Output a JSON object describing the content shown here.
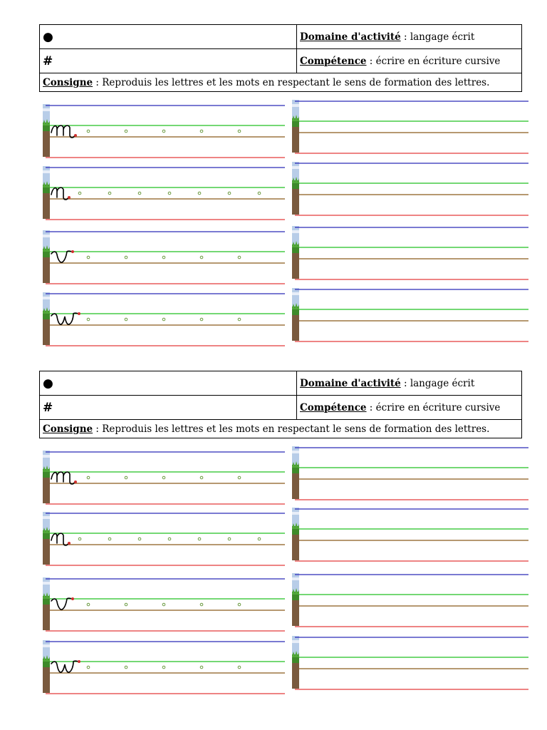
{
  "sheets": [
    {
      "bullet": "●",
      "hash": "#",
      "domaine_label": "Domaine d'activité",
      "domaine_value": " : langage écrit",
      "competence_label": "Compétence",
      "competence_value": " : écrire en écriture cursive",
      "consigne_label": "Consigne",
      "consigne_value": " : Reproduis les lettres et les mots en respectant le sens de formation des lettres."
    },
    {
      "bullet": "●",
      "hash": "#",
      "domaine_label": "Domaine d'activité",
      "domaine_value": " : langage écrit",
      "competence_label": "Compétence",
      "competence_value": " : écrire en écriture cursive",
      "consigne_label": "Consigne",
      "consigne_value": " : Reproduis les lettres et les mots en respectant le sens de formation des lettres."
    }
  ],
  "exercises": [
    {
      "model_letter": "m",
      "dot_count": 5
    },
    {
      "model_letter": "n",
      "dot_count": 7
    },
    {
      "model_letter": "v",
      "dot_count": 5
    },
    {
      "model_letter": "w",
      "dot_count": 5
    }
  ],
  "colors": {
    "top_line": "#2a2ab8",
    "mid_line": "#22c022",
    "base_line": "#8a5a1a",
    "bottom_line": "#e43a3a",
    "dot": "#6a9a40",
    "start_dot": "#d03030",
    "letter": "#000000"
  },
  "icons": {
    "band_edge": "grass-soil-icon"
  }
}
